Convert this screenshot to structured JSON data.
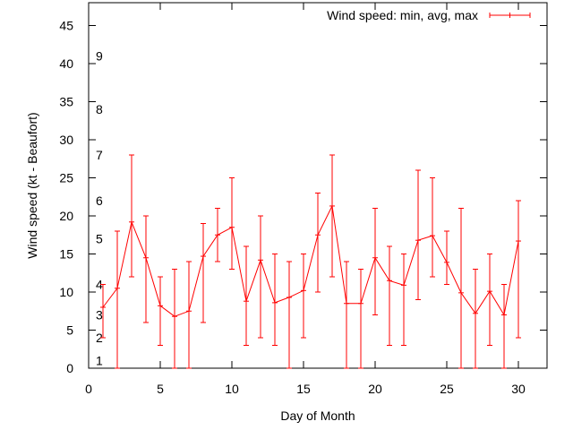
{
  "chart_data": {
    "type": "line",
    "title": "",
    "xlabel": "Day of Month",
    "ylabel": "Wind speed (kt - Beaufort)",
    "xlim": [
      0,
      32
    ],
    "ylim": [
      0,
      48
    ],
    "x_ticks": [
      0,
      5,
      10,
      15,
      20,
      25,
      30
    ],
    "y_ticks": [
      0,
      5,
      10,
      15,
      20,
      25,
      30,
      35,
      40,
      45
    ],
    "grid": false,
    "legend_position": "top-right",
    "series": [
      {
        "name": "Wind speed: min, avg, max",
        "color": "#ff0000",
        "x": [
          1,
          2,
          3,
          4,
          5,
          6,
          7,
          8,
          9,
          10,
          11,
          12,
          13,
          14,
          15,
          16,
          17,
          18,
          19,
          20,
          21,
          22,
          23,
          24,
          25,
          26,
          27,
          28,
          29,
          30
        ],
        "avg": [
          8,
          10.5,
          19.2,
          14.5,
          8.2,
          6.8,
          7.5,
          14.7,
          17.5,
          18.5,
          8.8,
          14.2,
          8.6,
          9.3,
          10.2,
          17.5,
          21.3,
          8.5,
          8.5,
          14.5,
          11.5,
          10.9,
          16.8,
          17.4,
          13.9,
          9.9,
          7.2,
          10.1,
          7.0,
          16.7
        ],
        "min": [
          4,
          0,
          12,
          6,
          3,
          0,
          0,
          6,
          14,
          13,
          3,
          4,
          3,
          0,
          4,
          10,
          12,
          0,
          0,
          7,
          3,
          3,
          9,
          12,
          11,
          0,
          0,
          3,
          0,
          4
        ],
        "max": [
          11,
          18,
          28,
          20,
          12,
          13,
          14,
          19,
          21,
          25,
          16,
          20,
          15,
          14,
          15,
          23,
          28,
          14,
          13,
          21,
          16,
          15,
          26,
          25,
          18,
          21,
          13,
          15,
          11,
          22
        ]
      }
    ],
    "beaufort_labels": [
      {
        "text": "1",
        "kt": 1
      },
      {
        "text": "2",
        "kt": 4
      },
      {
        "text": "3",
        "kt": 7
      },
      {
        "text": "4",
        "kt": 11
      },
      {
        "text": "5",
        "kt": 17
      },
      {
        "text": "6",
        "kt": 22
      },
      {
        "text": "7",
        "kt": 28
      },
      {
        "text": "8",
        "kt": 34
      },
      {
        "text": "9",
        "kt": 41
      }
    ]
  }
}
